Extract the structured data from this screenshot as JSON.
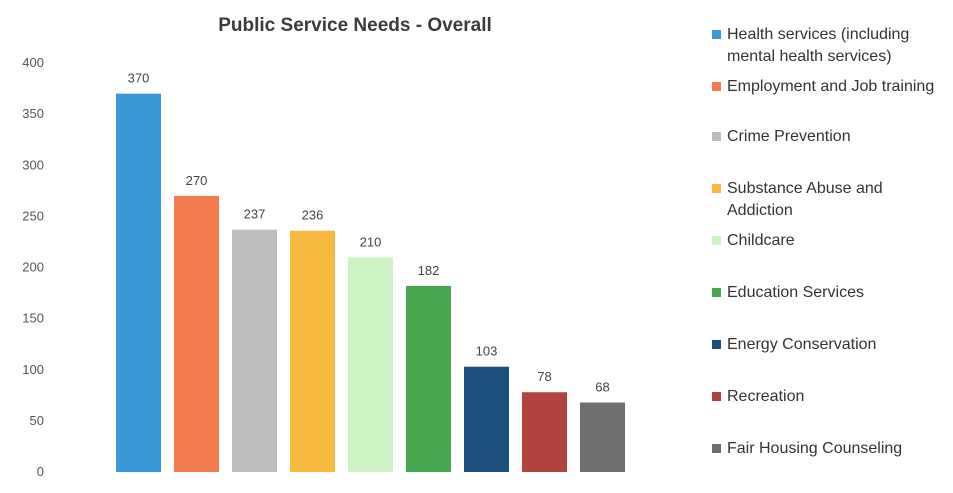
{
  "chart_data": {
    "type": "bar",
    "title": "Public Service Needs - Overall",
    "xlabel": "",
    "ylabel": "",
    "ylim": [
      0,
      400
    ],
    "yticks": [
      "0",
      "50",
      "100",
      "150",
      "200",
      "250",
      "300",
      "350",
      "400"
    ],
    "grid": false,
    "legend_position": "right",
    "categories": [
      "Health services (including mental health services)",
      "Employment and Job training",
      "Crime Prevention",
      "Substance Abuse and Addiction",
      "Childcare",
      "Education Services",
      "Energy Conservation",
      "Recreation",
      "Fair Housing Counseling"
    ],
    "values": [
      370,
      270,
      237,
      236,
      210,
      182,
      103,
      78,
      68
    ],
    "value_labels": [
      "370",
      "270",
      "237",
      "236",
      "210",
      "182",
      "103",
      "78",
      "68"
    ],
    "colors": [
      "#3a98d8",
      "#f27b50",
      "#bdbdbd",
      "#f7b93f",
      "#cff5c6",
      "#48a64f",
      "#1c4f7c",
      "#b2423e",
      "#6f6f6f"
    ]
  }
}
